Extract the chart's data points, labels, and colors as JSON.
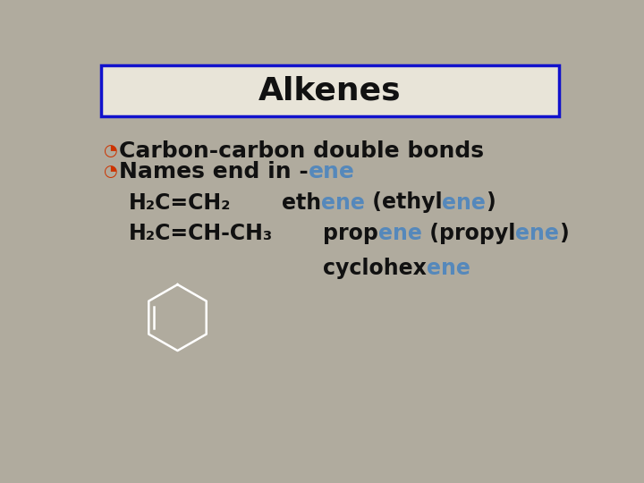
{
  "title": "Alkenes",
  "bg_color": "#b0ab9e",
  "title_box_color": "#e8e4d8",
  "title_box_border": "#1111cc",
  "title_color": "#111111",
  "title_fontsize": 26,
  "bullet_color": "#cc3300",
  "bullet_symbol": "◔",
  "bullet1": "Carbon-carbon double bonds",
  "bullet2_black": "Names end in -",
  "bullet2_blue": "ene",
  "blue_color": "#5588bb",
  "black_color": "#111111",
  "row1_formula": "H₂C=CH₂",
  "row2_formula": "H₂C=CH-CH₃",
  "formula_fontsize": 17,
  "name_fontsize": 17,
  "bullet_fontsize": 18,
  "bullet_symbol_fontsize": 13
}
